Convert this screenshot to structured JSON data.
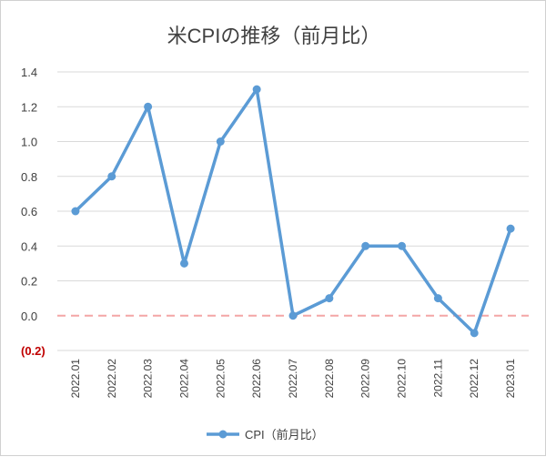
{
  "chart_data": {
    "type": "line",
    "title": "米CPIの推移（前月比）",
    "categories": [
      "2022.01",
      "2022.02",
      "2022.03",
      "2022.04",
      "2022.05",
      "2022.06",
      "2022.07",
      "2022.08",
      "2022.09",
      "2022.10",
      "2022.11",
      "2022.12",
      "2023.01"
    ],
    "series": [
      {
        "name": "CPI（前月比）",
        "values": [
          0.6,
          0.8,
          1.2,
          0.3,
          1.0,
          1.3,
          0.0,
          0.1,
          0.4,
          0.4,
          0.1,
          -0.1,
          0.5
        ],
        "color": "#5b9bd5"
      }
    ],
    "ylim": [
      -0.2,
      1.4
    ],
    "yticks": [
      1.4,
      1.2,
      1.0,
      0.8,
      0.6,
      0.4,
      0.2,
      0.0,
      -0.2
    ],
    "ytick_labels": [
      "1.4",
      "1.2",
      "1.0",
      "0.8",
      "0.6",
      "0.4",
      "0.2",
      "0.0",
      "(0.2)"
    ],
    "negative_label_color": "#c00000",
    "grid": true,
    "reference_line": {
      "value": 0.0,
      "style": "dashed",
      "color": "#f4a6a6"
    },
    "legend": "bottom"
  }
}
